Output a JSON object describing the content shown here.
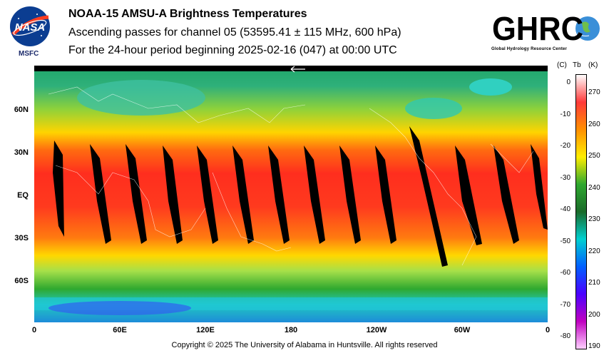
{
  "header": {
    "title": "NOAA-15 AMSU-A Brightness Temperatures",
    "subtitle": "Ascending passes for channel 05 (53595.41 ± 115 MHz, 600 hPa)",
    "period": "For the 24-hour period beginning 2025-02-16 (047) at 00:00 UTC"
  },
  "logos": {
    "nasa_text": "NASA",
    "msfc": "MSFC",
    "ghrc_text": "GHRC",
    "ghrc_subtitle": "Global Hydrology Resource Center"
  },
  "map": {
    "lat_labels": [
      "60N",
      "30N",
      "EQ",
      "30S",
      "60S"
    ],
    "lon_labels": [
      "0",
      "60E",
      "120E",
      "180",
      "120W",
      "60W",
      "0"
    ]
  },
  "colorbar": {
    "celsius_header": "(C)",
    "tb_header": "Tb",
    "kelvin_header": "(K)",
    "celsius_ticks": [
      "0",
      "-10",
      "-20",
      "-30",
      "-40",
      "-50",
      "-60",
      "-70",
      "-80"
    ],
    "kelvin_ticks": [
      "270",
      "260",
      "250",
      "240",
      "230",
      "220",
      "210",
      "200",
      "190"
    ],
    "colors": [
      "#ffffff",
      "#ff3a3a",
      "#ff9000",
      "#ffee00",
      "#2fa82f",
      "#1a6b2a",
      "#00d0d0",
      "#0060ff",
      "#4a00ff",
      "#c000c0",
      "#ffd0ff"
    ]
  },
  "footer": {
    "copyright": "Copyright © 2025 The University of Alabama in Huntsville.  All rights reserved"
  }
}
